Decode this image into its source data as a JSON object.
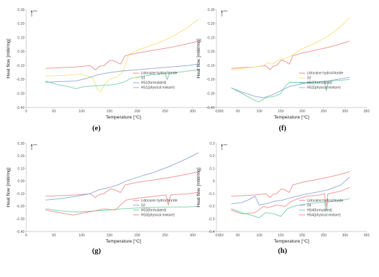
{
  "colors": {
    "lidocaine": "#f08a8a",
    "pure": "#f2e27a",
    "formulated": "#8fa3d6",
    "physical": "#6fd0a6",
    "axis": "#bdbdbd"
  },
  "exo_label": "exo",
  "chart_data": [
    {
      "type": "line",
      "panel_label": "(e)",
      "xlabel": "Temperature [°C]",
      "ylabel": "Heat flow [mW/mg]",
      "xlim": [
        0,
        350
      ],
      "ylim": [
        -0.4,
        0.3
      ],
      "xticks": [
        "0",
        "50",
        "100",
        "150",
        "200",
        "250",
        "300",
        "350"
      ],
      "yticks": [
        "0.30",
        "0.20",
        "0.10",
        "0.00",
        "-0.10",
        "-0.20",
        "-0.30",
        "-0.40"
      ],
      "legend_position": "right",
      "series": [
        {
          "name": "Lidocaine hydrochloride",
          "color_key": "lidocaine",
          "x": [
            35,
            60,
            90,
            115,
            125,
            132,
            140,
            152,
            160,
            170,
            178,
            200,
            230,
            260,
            290,
            310
          ],
          "y": [
            -0.12,
            -0.115,
            -0.11,
            -0.1,
            -0.13,
            -0.105,
            -0.1,
            -0.06,
            -0.07,
            -0.09,
            -0.03,
            -0.01,
            0.01,
            0.03,
            0.055,
            0.075
          ]
        },
        {
          "name": "S1",
          "color_key": "pure",
          "x": [
            35,
            70,
            100,
            120,
            128,
            134,
            142,
            150,
            165,
            175,
            185,
            200,
            230,
            260,
            290,
            310
          ],
          "y": [
            -0.175,
            -0.17,
            -0.16,
            -0.19,
            -0.27,
            -0.29,
            -0.23,
            -0.2,
            -0.18,
            -0.14,
            -0.02,
            0.01,
            0.05,
            0.1,
            0.17,
            0.23
          ]
        },
        {
          "name": "HS1(formulated)",
          "color_key": "formulated",
          "x": [
            35,
            60,
            90,
            110,
            130,
            150,
            170,
            200,
            230,
            260,
            290,
            310
          ],
          "y": [
            -0.22,
            -0.215,
            -0.21,
            -0.19,
            -0.165,
            -0.15,
            -0.14,
            -0.13,
            -0.12,
            -0.11,
            -0.1,
            -0.09
          ]
        },
        {
          "name": "HS1(physical mixture)",
          "color_key": "physical",
          "x": [
            35,
            55,
            75,
            90,
            105,
            125,
            145,
            160,
            175,
            190,
            220,
            250,
            254,
            258,
            280,
            310
          ],
          "y": [
            -0.21,
            -0.235,
            -0.25,
            -0.265,
            -0.25,
            -0.245,
            -0.24,
            -0.235,
            -0.22,
            -0.19,
            -0.17,
            -0.155,
            -0.2,
            -0.155,
            -0.145,
            -0.13
          ]
        }
      ]
    },
    {
      "type": "line",
      "panel_label": "(f)",
      "xlabel": "Temperature [°C]",
      "ylabel": "Heat flow [mW/mg]",
      "xlim": [
        0,
        350
      ],
      "ylim": [
        -0.4,
        0.3
      ],
      "xticks": [
        "0",
        "50",
        "100",
        "150",
        "200",
        "250",
        "300",
        "350"
      ],
      "yticks": [
        "0.30",
        "0.20",
        "0.10",
        "0.00",
        "-0.10",
        "-0.20",
        "-0.30",
        "-0.40"
      ],
      "legend_position": "right",
      "series": [
        {
          "name": "Lidocaine hydrochloride",
          "color_key": "lidocaine",
          "x": [
            35,
            60,
            90,
            115,
            125,
            132,
            140,
            152,
            160,
            170,
            178,
            200,
            230,
            260,
            290,
            310
          ],
          "y": [
            -0.12,
            -0.115,
            -0.11,
            -0.1,
            -0.13,
            -0.105,
            -0.1,
            -0.06,
            -0.07,
            -0.09,
            -0.03,
            -0.01,
            0.01,
            0.03,
            0.055,
            0.075
          ]
        },
        {
          "name": "S2",
          "color_key": "pure",
          "x": [
            35,
            60,
            90,
            110,
            120,
            130,
            145,
            160,
            175,
            200,
            230,
            260,
            290,
            310
          ],
          "y": [
            -0.13,
            -0.12,
            -0.11,
            -0.1,
            -0.08,
            -0.09,
            -0.06,
            -0.05,
            -0.03,
            0.02,
            0.06,
            0.11,
            0.18,
            0.24
          ]
        },
        {
          "name": "HS2(formulated)",
          "color_key": "formulated",
          "x": [
            35,
            60,
            90,
            110,
            130,
            150,
            170,
            200,
            230,
            260,
            290,
            310
          ],
          "y": [
            -0.26,
            -0.29,
            -0.32,
            -0.33,
            -0.31,
            -0.28,
            -0.25,
            -0.23,
            -0.22,
            -0.21,
            -0.195,
            -0.185
          ]
        },
        {
          "name": "HS2(physical mixture)",
          "color_key": "physical",
          "x": [
            35,
            60,
            90,
            100,
            115,
            135,
            150,
            160,
            170,
            200,
            240,
            252,
            256,
            262,
            290,
            310
          ],
          "y": [
            -0.26,
            -0.3,
            -0.35,
            -0.36,
            -0.33,
            -0.32,
            -0.3,
            -0.25,
            -0.22,
            -0.22,
            -0.22,
            -0.21,
            -0.28,
            -0.21,
            -0.205,
            -0.2
          ]
        }
      ]
    },
    {
      "type": "line",
      "panel_label": "(g)",
      "xlabel": "Temperature [°C]",
      "ylabel": "Heat flow [mW/mg]",
      "xlim": [
        0,
        350
      ],
      "ylim": [
        -0.4,
        0.3
      ],
      "xticks": [
        "0",
        "50",
        "100",
        "150",
        "200",
        "250",
        "300",
        "350"
      ],
      "yticks": [
        "0.30",
        "0.20",
        "0.10",
        "0.00",
        "-0.10",
        "-0.20",
        "-0.30",
        "-0.40"
      ],
      "legend_position": "right",
      "series": [
        {
          "name": "Lidocaine hydrochloride",
          "color_key": "lidocaine",
          "x": [
            35,
            60,
            90,
            115,
            125,
            132,
            140,
            152,
            160,
            170,
            178,
            200,
            230,
            260,
            290,
            310
          ],
          "y": [
            -0.12,
            -0.115,
            -0.11,
            -0.1,
            -0.13,
            -0.105,
            -0.1,
            -0.06,
            -0.07,
            -0.09,
            -0.03,
            -0.01,
            0.01,
            0.03,
            0.055,
            0.075
          ]
        },
        {
          "name": "S3",
          "color_key": "formulated",
          "x": [
            35,
            60,
            90,
            115,
            130,
            150,
            165,
            180,
            200,
            230,
            260,
            290,
            310
          ],
          "y": [
            -0.15,
            -0.14,
            -0.12,
            -0.1,
            -0.07,
            -0.05,
            -0.03,
            0.0,
            0.03,
            0.07,
            0.12,
            0.18,
            0.225
          ]
        },
        {
          "name": "HS3(formulated)",
          "color_key": "physical",
          "x": [
            35,
            60,
            90,
            110,
            130,
            150,
            170,
            190,
            220,
            260,
            290,
            310
          ],
          "y": [
            -0.22,
            -0.235,
            -0.245,
            -0.24,
            -0.235,
            -0.23,
            -0.22,
            -0.215,
            -0.21,
            -0.205,
            -0.205,
            -0.2
          ]
        },
        {
          "name": "HS3(physical mixture)",
          "color_key": "lidocaine",
          "x": [
            35,
            60,
            85,
            100,
            120,
            140,
            160,
            170,
            180,
            200,
            230,
            252,
            256,
            260,
            290,
            310
          ],
          "y": [
            -0.23,
            -0.25,
            -0.27,
            -0.255,
            -0.24,
            -0.22,
            -0.23,
            -0.19,
            -0.15,
            -0.135,
            -0.12,
            -0.11,
            -0.19,
            -0.11,
            -0.1,
            -0.09
          ]
        }
      ]
    },
    {
      "type": "line",
      "panel_label": "(h)",
      "xlabel": "Temperature [°C]",
      "ylabel": "Heat flow [mW/mg]",
      "xlim": [
        0,
        350
      ],
      "ylim": [
        -0.4,
        0.3
      ],
      "xticks": [
        "0",
        "50",
        "100",
        "150",
        "200",
        "250",
        "300",
        "350"
      ],
      "yticks": [
        "0.3",
        "0.2",
        "0.1",
        "0",
        "-0.1",
        "-0.2",
        "-0.3",
        "-0.4"
      ],
      "legend_position": "right",
      "series": [
        {
          "name": "Lidocaine hydrochloride",
          "color_key": "lidocaine",
          "x": [
            35,
            60,
            90,
            115,
            125,
            132,
            140,
            152,
            160,
            170,
            178,
            200,
            230,
            260,
            290,
            310
          ],
          "y": [
            -0.12,
            -0.115,
            -0.11,
            -0.1,
            -0.13,
            -0.105,
            -0.1,
            -0.06,
            -0.07,
            -0.09,
            -0.03,
            -0.01,
            0.01,
            0.03,
            0.055,
            0.075
          ]
        },
        {
          "name": "S4",
          "color_key": "formulated",
          "x": [
            35,
            60,
            80,
            90,
            100,
            115,
            135,
            155,
            175,
            200,
            230,
            260,
            290,
            310
          ],
          "y": [
            -0.18,
            -0.17,
            -0.14,
            -0.12,
            -0.19,
            -0.18,
            -0.16,
            -0.15,
            -0.13,
            -0.11,
            -0.09,
            -0.07,
            -0.03,
            0.03
          ]
        },
        {
          "name": "HS4(formulated)",
          "color_key": "physical",
          "x": [
            35,
            60,
            90,
            100,
            115,
            135,
            150,
            165,
            180,
            210,
            240,
            252,
            256,
            260,
            290,
            310
          ],
          "y": [
            -0.22,
            -0.25,
            -0.28,
            -0.29,
            -0.25,
            -0.26,
            -0.28,
            -0.22,
            -0.2,
            -0.18,
            -0.17,
            -0.165,
            -0.23,
            -0.165,
            -0.155,
            -0.14
          ]
        },
        {
          "name": "HS4(physical mixture)",
          "color_key": "lidocaine",
          "x": [
            35,
            60,
            90,
            110,
            120,
            140,
            160,
            175,
            190,
            210,
            240,
            252,
            256,
            260,
            290,
            310
          ],
          "y": [
            -0.23,
            -0.26,
            -0.25,
            -0.2,
            -0.21,
            -0.19,
            -0.2,
            -0.16,
            -0.14,
            -0.12,
            -0.11,
            -0.1,
            -0.2,
            -0.1,
            -0.08,
            -0.05
          ]
        }
      ]
    }
  ]
}
